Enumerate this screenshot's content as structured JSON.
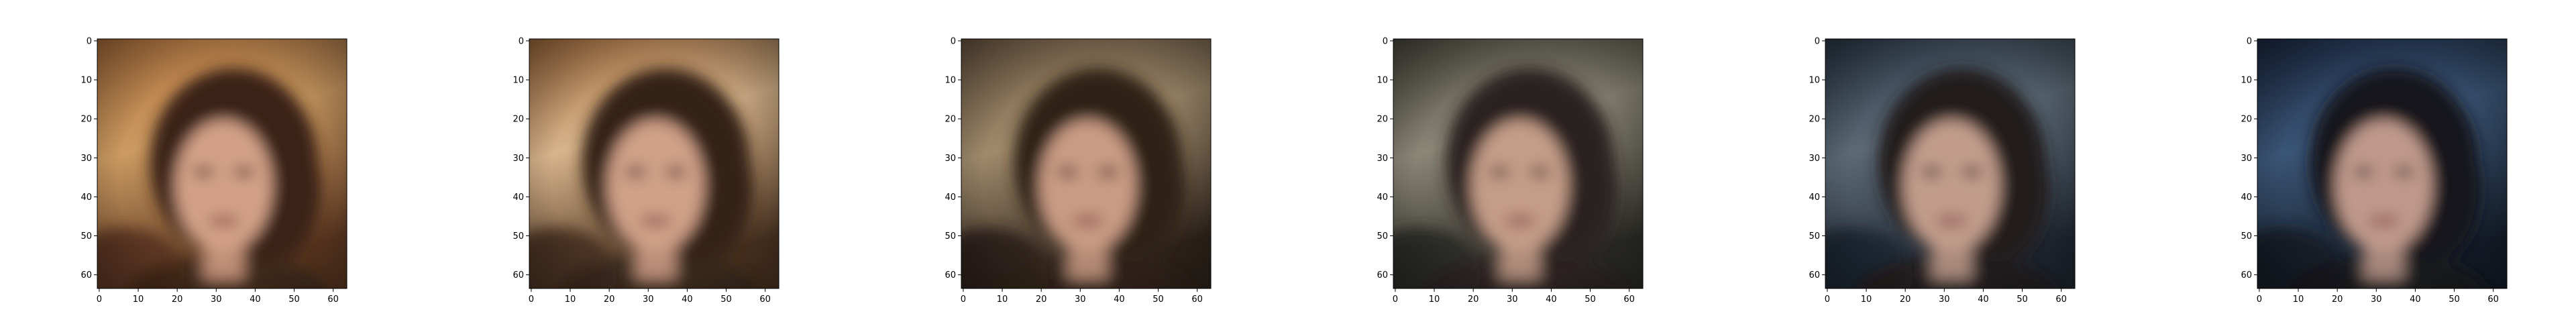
{
  "figure": {
    "panel_count": 6,
    "axis_ticks": {
      "x": [
        "0",
        "10",
        "20",
        "30",
        "40",
        "50",
        "60"
      ],
      "y": [
        "0",
        "10",
        "20",
        "30",
        "40",
        "50",
        "60"
      ]
    },
    "image_extent": [
      0,
      64
    ],
    "panels": [
      {
        "bg_top": "#b2733e",
        "bg_mid": "#cc9a62",
        "bg_bottom": "#5a3620",
        "skin": "#d3a087",
        "hair": "#3a2418"
      },
      {
        "bg_top": "#a66f3f",
        "bg_mid": "#d7b48b",
        "bg_bottom": "#4a3220",
        "skin": "#d0a088",
        "hair": "#352419"
      },
      {
        "bg_top": "#6f5a44",
        "bg_mid": "#a08a6c",
        "bg_bottom": "#2e231b",
        "skin": "#c99b84",
        "hair": "#2f2219"
      },
      {
        "bg_top": "#4d4a40",
        "bg_mid": "#8b8676",
        "bg_bottom": "#2b2a25",
        "skin": "#c49d88",
        "hair": "#2b2120"
      },
      {
        "bg_top": "#2c3a49",
        "bg_mid": "#5c6a76",
        "bg_bottom": "#1f2630",
        "skin": "#c19c8b",
        "hair": "#231d1c"
      },
      {
        "bg_top": "#1c2b45",
        "bg_mid": "#3a5575",
        "bg_bottom": "#141c28",
        "skin": "#bf9a8b",
        "hair": "#18161a"
      }
    ]
  }
}
